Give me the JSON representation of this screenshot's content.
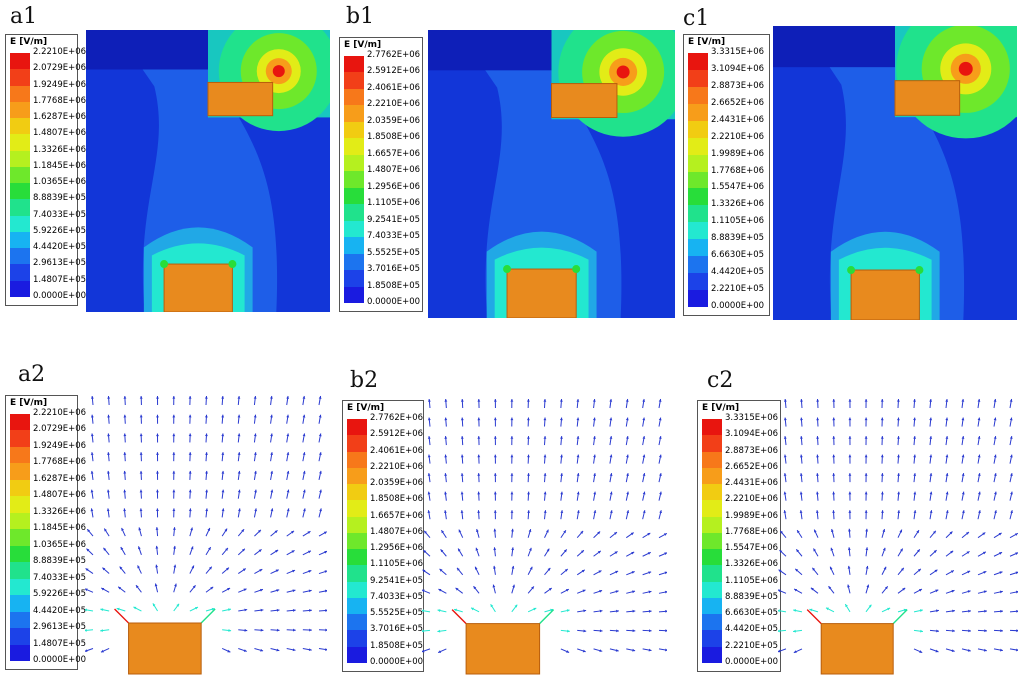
{
  "panels": [
    {
      "id": "a1",
      "label": "a1",
      "type": "field"
    },
    {
      "id": "b1",
      "label": "b1",
      "type": "field"
    },
    {
      "id": "c1",
      "label": "c1",
      "type": "field"
    },
    {
      "id": "a2",
      "label": "a2",
      "type": "vector"
    },
    {
      "id": "b2",
      "label": "b2",
      "type": "vector"
    },
    {
      "id": "c2",
      "label": "c2",
      "type": "vector"
    }
  ],
  "legend_unit": "E [V/m]",
  "legend_colors": [
    "#e8150f",
    "#f23f18",
    "#f7781a",
    "#f79d1a",
    "#f1cc12",
    "#e2ec17",
    "#b5f01f",
    "#6ee82b",
    "#28dd3a",
    "#20e28c",
    "#23e8d0",
    "#17b3f2",
    "#1c74ef",
    "#1c42e8",
    "#1a1be0"
  ],
  "scales": {
    "a": [
      "2.2210E+06",
      "2.0729E+06",
      "1.9249E+06",
      "1.7768E+06",
      "1.6287E+06",
      "1.4807E+06",
      "1.3326E+06",
      "1.1845E+06",
      "1.0365E+06",
      "8.8839E+05",
      "7.4033E+05",
      "5.9226E+05",
      "4.4420E+05",
      "2.9613E+05",
      "1.4807E+05",
      "0.0000E+00"
    ],
    "b": [
      "2.7762E+06",
      "2.5912E+06",
      "2.4061E+06",
      "2.2210E+06",
      "2.0359E+06",
      "1.8508E+06",
      "1.6657E+06",
      "1.4807E+06",
      "1.2956E+06",
      "1.1105E+06",
      "9.2541E+05",
      "7.4033E+05",
      "5.5525E+05",
      "3.7016E+05",
      "1.8508E+05",
      "0.0000E+00"
    ],
    "c": [
      "3.3315E+06",
      "3.1094E+06",
      "2.8873E+06",
      "2.6652E+06",
      "2.4431E+06",
      "2.2210E+06",
      "1.9989E+06",
      "1.7768E+06",
      "1.5547E+06",
      "1.3326E+06",
      "1.1105E+06",
      "8.8839E+05",
      "6.6630E+05",
      "4.4420E+05",
      "2.2210E+05",
      "0.0000E+00"
    ]
  },
  "colors": {
    "background_field": "#1236d8",
    "field_light": "#1e5ee8",
    "electrode": "#e88a1e",
    "electrode_edge": "#b85e0c",
    "arrow": "#2a3ad0"
  }
}
